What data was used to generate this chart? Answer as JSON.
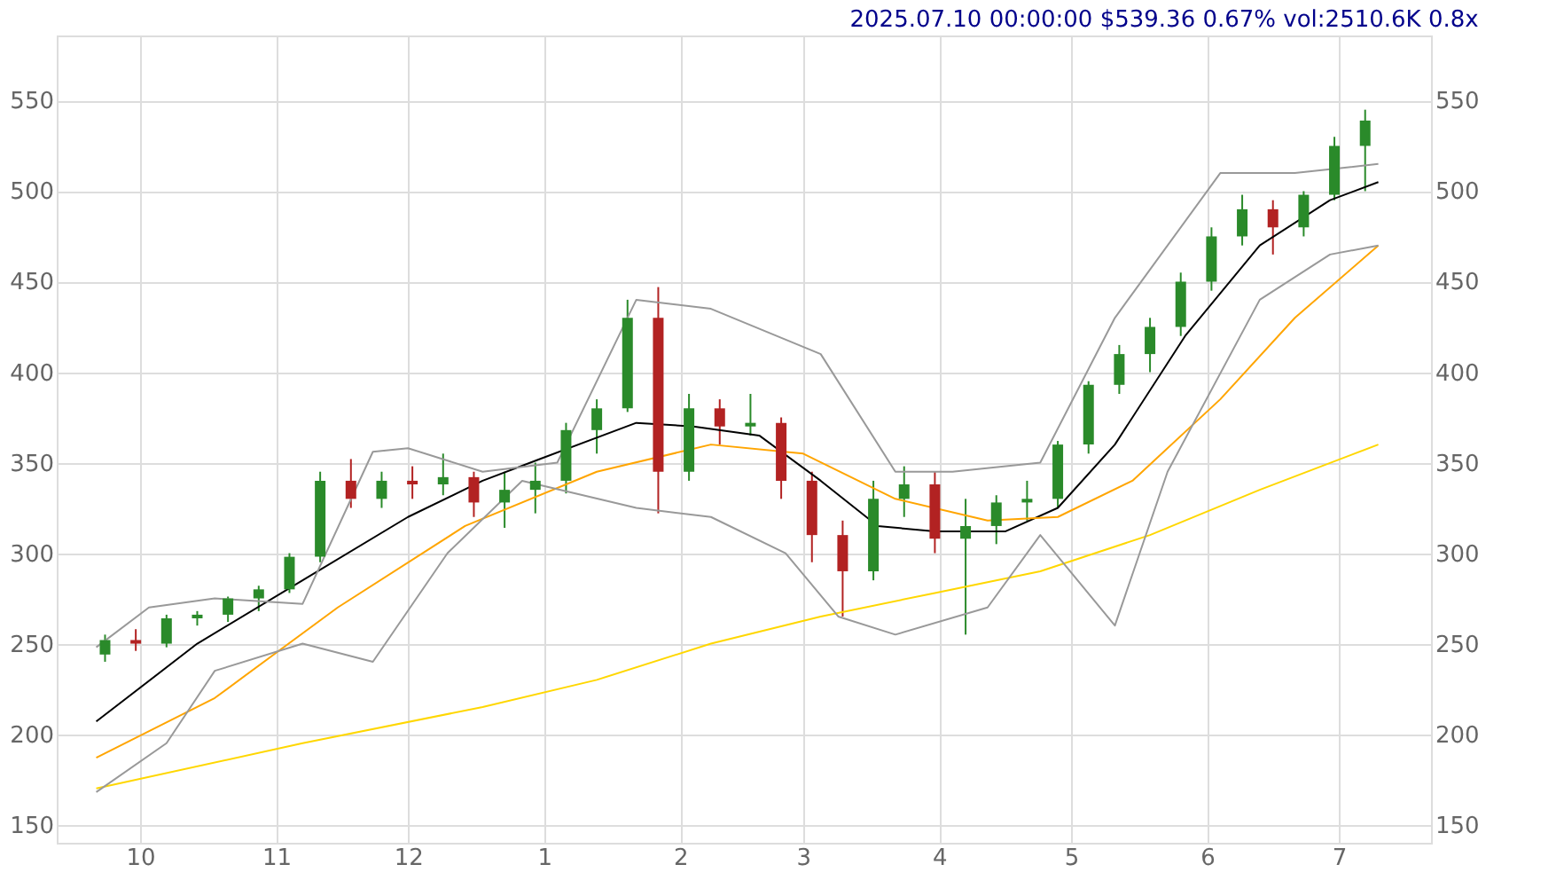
{
  "chart_data": {
    "type": "candlestick",
    "title": "2025.07.10 00:00:00 $539.36 0.67% vol:2510.6K 0.8x",
    "x": [
      "2024-09-23",
      "2024-09-30",
      "2024-10-07",
      "2024-10-14",
      "2024-10-21",
      "2024-10-28",
      "2024-11-04",
      "2024-11-11",
      "2024-11-18",
      "2024-11-25",
      "2024-12-02",
      "2024-12-09",
      "2024-12-16",
      "2024-12-23",
      "2024-12-30",
      "2025-01-06",
      "2025-01-13",
      "2025-01-20",
      "2025-01-27",
      "2025-02-03",
      "2025-02-10",
      "2025-02-17",
      "2025-02-24",
      "2025-03-03",
      "2025-03-10",
      "2025-03-17",
      "2025-03-24",
      "2025-03-31",
      "2025-04-07",
      "2025-04-14",
      "2025-04-21",
      "2025-04-28",
      "2025-05-05",
      "2025-05-12",
      "2025-05-19",
      "2025-05-26",
      "2025-06-02",
      "2025-06-09",
      "2025-06-16",
      "2025-06-23",
      "2025-06-30",
      "2025-07-07"
    ],
    "ohlc": [
      [
        244,
        255,
        240,
        252
      ],
      [
        252,
        258,
        246,
        250
      ],
      [
        250,
        266,
        248,
        264
      ],
      [
        264,
        268,
        260,
        266
      ],
      [
        266,
        276,
        262,
        275
      ],
      [
        275,
        282,
        268,
        280
      ],
      [
        280,
        300,
        278,
        298
      ],
      [
        298,
        345,
        295,
        340
      ],
      [
        340,
        352,
        325,
        330
      ],
      [
        330,
        345,
        325,
        340
      ],
      [
        340,
        348,
        330,
        338
      ],
      [
        338,
        355,
        332,
        342
      ],
      [
        342,
        345,
        320,
        328
      ],
      [
        328,
        345,
        314,
        335
      ],
      [
        335,
        350,
        322,
        340
      ],
      [
        340,
        372,
        333,
        368
      ],
      [
        368,
        385,
        355,
        380
      ],
      [
        380,
        440,
        378,
        430
      ],
      [
        430,
        447,
        322,
        345
      ],
      [
        345,
        388,
        340,
        380
      ],
      [
        380,
        385,
        360,
        370
      ],
      [
        370,
        388,
        365,
        372
      ],
      [
        372,
        375,
        330,
        340
      ],
      [
        340,
        345,
        295,
        310
      ],
      [
        310,
        318,
        265,
        290
      ],
      [
        290,
        340,
        285,
        330
      ],
      [
        330,
        348,
        320,
        338
      ],
      [
        338,
        345,
        300,
        308
      ],
      [
        308,
        330,
        255,
        315
      ],
      [
        315,
        332,
        305,
        328
      ],
      [
        328,
        340,
        318,
        330
      ],
      [
        330,
        362,
        325,
        360
      ],
      [
        360,
        395,
        355,
        393
      ],
      [
        393,
        415,
        388,
        410
      ],
      [
        410,
        430,
        400,
        425
      ],
      [
        425,
        455,
        420,
        450
      ],
      [
        450,
        480,
        445,
        475
      ],
      [
        475,
        498,
        470,
        490
      ],
      [
        490,
        495,
        465,
        480
      ],
      [
        480,
        500,
        475,
        498
      ],
      [
        498,
        530,
        495,
        525
      ],
      [
        525,
        545,
        500,
        539
      ]
    ],
    "colors": [
      "#2a8a2a",
      "#b22222",
      "#2a8a2a",
      "#2a8a2a",
      "#2a8a2a",
      "#2a8a2a",
      "#2a8a2a",
      "#2a8a2a",
      "#b22222",
      "#2a8a2a",
      "#b22222",
      "#2a8a2a",
      "#b22222",
      "#2a8a2a",
      "#2a8a2a",
      "#2a8a2a",
      "#2a8a2a",
      "#2a8a2a",
      "#b22222",
      "#2a8a2a",
      "#b22222",
      "#2a8a2a",
      "#b22222",
      "#b22222",
      "#b22222",
      "#2a8a2a",
      "#2a8a2a",
      "#b22222",
      "#2a8a2a",
      "#2a8a2a",
      "#2a8a2a",
      "#2a8a2a",
      "#2a8a2a",
      "#2a8a2a",
      "#2a8a2a",
      "#2a8a2a",
      "#2a8a2a",
      "#2a8a2a",
      "#b22222",
      "#2a8a2a",
      "#2a8a2a",
      "#2a8a2a"
    ],
    "series": [
      {
        "type": "line",
        "color": "#000000",
        "x": [
          "2024-09-21",
          "2024-10-14",
          "2024-11-07",
          "2024-12-01",
          "2024-12-18",
          "2024-12-31",
          "2025-01-22",
          "2025-02-04",
          "2025-02-19",
          "2025-03-05",
          "2025-03-18",
          "2025-03-31",
          "2025-04-16",
          "2025-04-28",
          "2025-05-11",
          "2025-05-27",
          "2025-06-13",
          "2025-06-29",
          "2025-07-10"
        ],
        "values": [
          207,
          250,
          285,
          320,
          340,
          352,
          372,
          370,
          365,
          340,
          315,
          312,
          312,
          325,
          360,
          420,
          470,
          495,
          505
        ]
      },
      {
        "type": "line",
        "color": "#ffa500",
        "x": [
          "2024-09-21",
          "2024-10-18",
          "2024-11-15",
          "2024-12-14",
          "2025-01-13",
          "2025-02-08",
          "2025-03-01",
          "2025-03-22",
          "2025-04-12",
          "2025-04-28",
          "2025-05-15",
          "2025-06-04",
          "2025-06-21",
          "2025-07-10"
        ],
        "values": [
          187,
          220,
          270,
          315,
          345,
          360,
          355,
          330,
          318,
          320,
          340,
          385,
          430,
          470
        ]
      },
      {
        "type": "line",
        "color": "#ffd700",
        "x": [
          "2024-09-21",
          "2024-11-07",
          "2024-12-18",
          "2025-01-13",
          "2025-02-08",
          "2025-03-05",
          "2025-03-31",
          "2025-04-24",
          "2025-05-19",
          "2025-06-13",
          "2025-07-10"
        ],
        "values": [
          170,
          195,
          215,
          230,
          250,
          265,
          278,
          290,
          310,
          335,
          360
        ]
      },
      {
        "type": "line",
        "color": "#999999",
        "x": [
          "2024-09-21",
          "2024-10-03",
          "2024-10-18",
          "2024-11-07",
          "2024-11-23",
          "2024-12-01",
          "2024-12-18",
          "2025-01-04",
          "2025-01-22",
          "2025-02-08",
          "2025-03-05",
          "2025-03-22",
          "2025-04-04",
          "2025-04-24",
          "2025-05-11",
          "2025-06-04",
          "2025-06-21",
          "2025-07-10"
        ],
        "values": [
          248,
          270,
          275,
          272,
          356,
          358,
          345,
          350,
          440,
          435,
          410,
          345,
          345,
          350,
          430,
          510,
          510,
          515
        ]
      },
      {
        "type": "line",
        "color": "#999999",
        "x": [
          "2024-09-21",
          "2024-10-07",
          "2024-10-18",
          "2024-11-07",
          "2024-11-23",
          "2024-12-10",
          "2024-12-27",
          "2025-01-22",
          "2025-02-08",
          "2025-02-25",
          "2025-03-09",
          "2025-03-22",
          "2025-04-12",
          "2025-04-24",
          "2025-05-11",
          "2025-05-23",
          "2025-06-13",
          "2025-06-29",
          "2025-07-10"
        ],
        "values": [
          168,
          195,
          235,
          250,
          240,
          300,
          340,
          325,
          320,
          300,
          265,
          255,
          270,
          310,
          260,
          345,
          440,
          465,
          470
        ]
      }
    ],
    "xlim": [
      "2024-09-12",
      "2025-07-22"
    ],
    "xticks": [
      {
        "value": "2024-10-01",
        "label": "10"
      },
      {
        "value": "2024-11-01",
        "label": "11"
      },
      {
        "value": "2024-12-01",
        "label": "12"
      },
      {
        "value": "2025-01-01",
        "label": "1"
      },
      {
        "value": "2025-02-01",
        "label": "2"
      },
      {
        "value": "2025-03-01",
        "label": "3"
      },
      {
        "value": "2025-04-01",
        "label": "4"
      },
      {
        "value": "2025-05-01",
        "label": "5"
      },
      {
        "value": "2025-06-01",
        "label": "6"
      },
      {
        "value": "2025-07-01",
        "label": "7"
      }
    ],
    "ylim": [
      140,
      586
    ],
    "yticks": [
      150,
      200,
      250,
      300,
      350,
      400,
      450,
      500,
      550
    ],
    "y2lim": [
      140,
      586
    ],
    "y2ticks": [
      150,
      200,
      250,
      300,
      350,
      400,
      450,
      500,
      550
    ],
    "grid": true
  }
}
